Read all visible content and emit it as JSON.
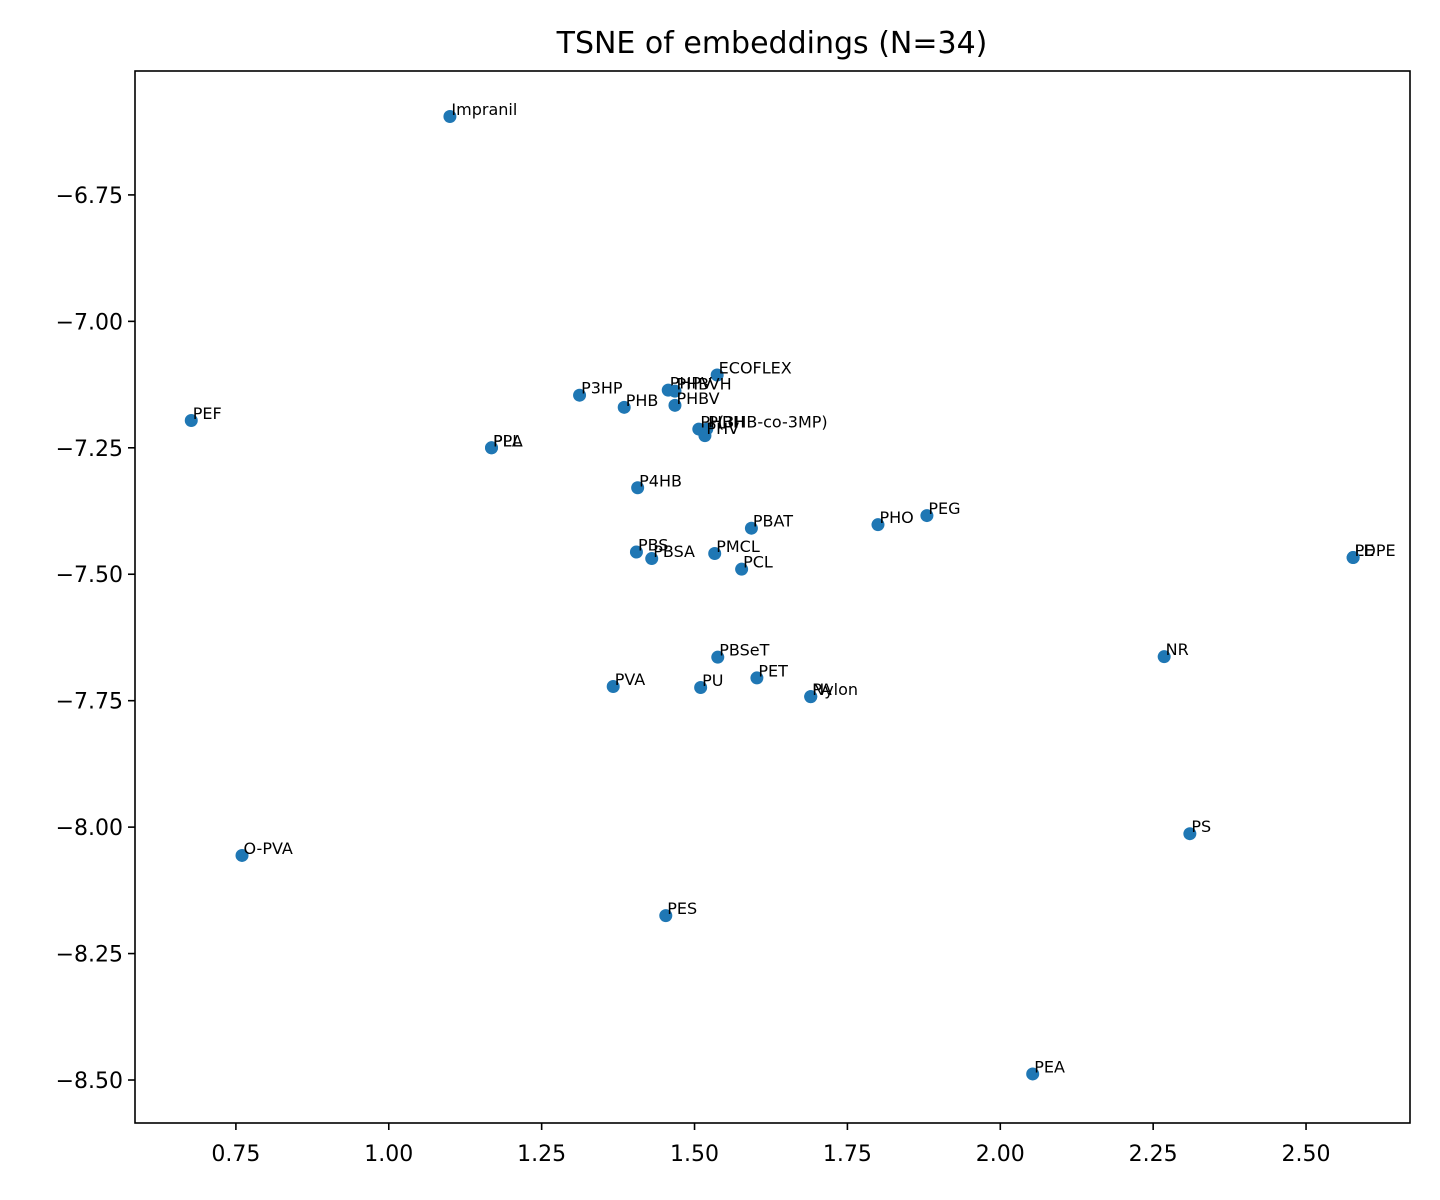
{
  "chart_data": {
    "type": "scatter",
    "title": "TSNE of embeddings (N=34)",
    "xlabel": "",
    "ylabel": "",
    "xlim": [
      0.585,
      2.67
    ],
    "ylim": [
      -8.585,
      -6.505
    ],
    "xticks": [
      {
        "value": 0.75,
        "label": "0.75"
      },
      {
        "value": 1.0,
        "label": "1.00"
      },
      {
        "value": 1.25,
        "label": "1.25"
      },
      {
        "value": 1.5,
        "label": "1.50"
      },
      {
        "value": 1.75,
        "label": "1.75"
      },
      {
        "value": 2.0,
        "label": "2.00"
      },
      {
        "value": 2.25,
        "label": "2.25"
      },
      {
        "value": 2.5,
        "label": "2.50"
      }
    ],
    "yticks": [
      {
        "value": -6.75,
        "label": "−6.75"
      },
      {
        "value": -7.0,
        "label": "−7.00"
      },
      {
        "value": -7.25,
        "label": "−7.25"
      },
      {
        "value": -7.5,
        "label": "−7.50"
      },
      {
        "value": -7.75,
        "label": "−7.75"
      },
      {
        "value": -8.0,
        "label": "−8.00"
      },
      {
        "value": -8.25,
        "label": "−8.25"
      },
      {
        "value": -8.5,
        "label": "−8.50"
      }
    ],
    "grid": false,
    "marker_color": "#1f77b4",
    "points": [
      {
        "label": "Impranil",
        "x": 1.1,
        "y": -6.595
      },
      {
        "label": "ECOFLEX",
        "x": 1.537,
        "y": -7.106
      },
      {
        "label": "P3HP",
        "x": 1.312,
        "y": -7.146
      },
      {
        "label": "PHPV",
        "x": 1.457,
        "y": -7.136
      },
      {
        "label": "PHBVH",
        "x": 1.468,
        "y": -7.138
      },
      {
        "label": "PHB",
        "x": 1.385,
        "y": -7.17
      },
      {
        "label": "PHBV",
        "x": 1.468,
        "y": -7.166
      },
      {
        "label": "PEF",
        "x": 0.677,
        "y": -7.196
      },
      {
        "label": "P(3HB-co-3MP)",
        "x": 1.52,
        "y": -7.213
      },
      {
        "label": "PHBH",
        "x": 1.507,
        "y": -7.213
      },
      {
        "label": "PHV",
        "x": 1.517,
        "y": -7.226
      },
      {
        "label": "PLA",
        "x": 1.168,
        "y": -7.25
      },
      {
        "label": "PPL",
        "x": 1.168,
        "y": -7.25
      },
      {
        "label": "P4HB",
        "x": 1.407,
        "y": -7.329
      },
      {
        "label": "PEG",
        "x": 1.88,
        "y": -7.384
      },
      {
        "label": "PHO",
        "x": 1.8,
        "y": -7.402
      },
      {
        "label": "PBAT",
        "x": 1.593,
        "y": -7.409
      },
      {
        "label": "PBS",
        "x": 1.405,
        "y": -7.456
      },
      {
        "label": "PBSA",
        "x": 1.43,
        "y": -7.469
      },
      {
        "label": "PMCL",
        "x": 1.533,
        "y": -7.459
      },
      {
        "label": "PCL",
        "x": 1.577,
        "y": -7.49
      },
      {
        "label": "LDPE",
        "x": 2.577,
        "y": -7.467
      },
      {
        "label": "PE",
        "x": 2.577,
        "y": -7.467
      },
      {
        "label": "PBSeT",
        "x": 1.538,
        "y": -7.664
      },
      {
        "label": "NR",
        "x": 2.268,
        "y": -7.663
      },
      {
        "label": "PET",
        "x": 1.602,
        "y": -7.705
      },
      {
        "label": "PVA",
        "x": 1.367,
        "y": -7.722
      },
      {
        "label": "PU",
        "x": 1.51,
        "y": -7.724
      },
      {
        "label": "PA",
        "x": 1.69,
        "y": -7.742
      },
      {
        "label": "Nylon",
        "x": 1.69,
        "y": -7.742
      },
      {
        "label": "PS",
        "x": 2.31,
        "y": -8.013
      },
      {
        "label": "O-PVA",
        "x": 0.76,
        "y": -8.056
      },
      {
        "label": "PES",
        "x": 1.453,
        "y": -8.175
      },
      {
        "label": "PEA",
        "x": 2.053,
        "y": -8.488
      }
    ]
  }
}
